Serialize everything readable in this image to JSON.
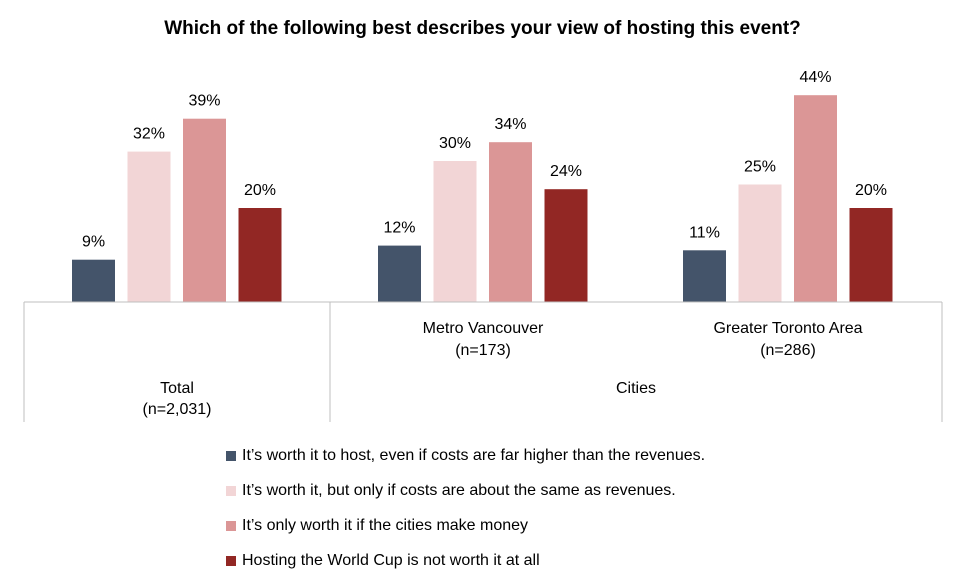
{
  "chart_data": {
    "type": "bar",
    "title": "Which of the following best describes your view of hosting this event?",
    "groups": [
      {
        "name": "Total",
        "n": "(n=2,031)"
      },
      {
        "name": "Metro Vancouver",
        "n": "(n=173)",
        "parent": "Cities"
      },
      {
        "name": "Greater Toronto Area",
        "n": "(n=286)",
        "parent": "Cities"
      }
    ],
    "parent_labels": {
      "cities": "Cities"
    },
    "series": [
      {
        "name": "It’s worth it to host, even if costs are far higher than the revenues.",
        "color": "#44546a",
        "values": [
          9,
          12,
          11
        ],
        "labels": [
          "9%",
          "12%",
          "11%"
        ]
      },
      {
        "name": "It’s worth it, but only if costs are about the same as revenues.",
        "color": "#f2d5d6",
        "values": [
          32,
          30,
          25
        ],
        "labels": [
          "32%",
          "30%",
          "25%"
        ]
      },
      {
        "name": "It’s only worth it if the cities make money",
        "color": "#db9696",
        "values": [
          39,
          34,
          44
        ],
        "labels": [
          "39%",
          "34%",
          "44%"
        ]
      },
      {
        "name": "Hosting the World Cup is not worth it at all",
        "color": "#922724",
        "values": [
          20,
          24,
          20
        ],
        "labels": [
          "20%",
          "24%",
          "20%"
        ]
      }
    ],
    "ylim": [
      0,
      50
    ],
    "xlabel": "",
    "ylabel": "",
    "legend": "bottom"
  }
}
